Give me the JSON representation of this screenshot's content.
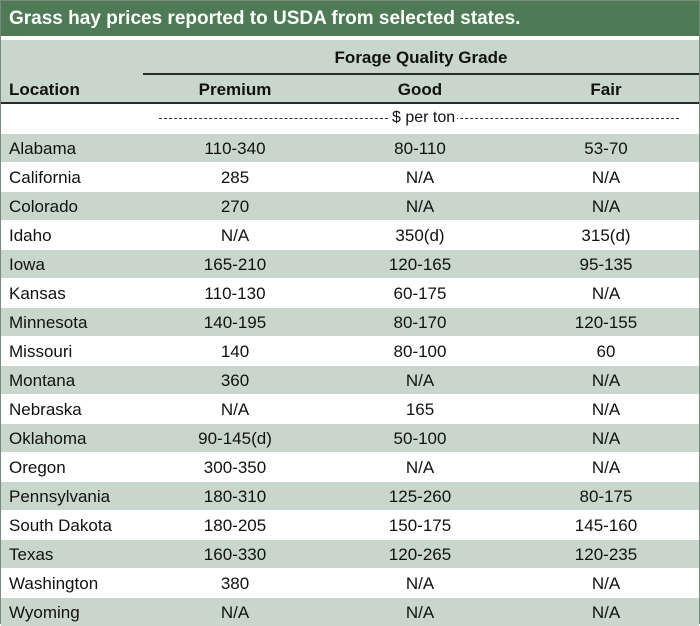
{
  "title": "Grass hay prices reported to USDA from selected states.",
  "header": {
    "group_label": "Forage Quality Grade",
    "location_label": "Location",
    "columns": [
      "Premium",
      "Good",
      "Fair"
    ]
  },
  "units_label": "$ per ton",
  "rows": [
    {
      "location": "Alabama",
      "premium": "110-340",
      "good": "80-110",
      "fair": "53-70"
    },
    {
      "location": "California",
      "premium": "285",
      "good": "N/A",
      "fair": "N/A"
    },
    {
      "location": "Colorado",
      "premium": "270",
      "good": "N/A",
      "fair": "N/A"
    },
    {
      "location": "Idaho",
      "premium": "N/A",
      "good": "350(d)",
      "fair": "315(d)"
    },
    {
      "location": "Iowa",
      "premium": "165-210",
      "good": "120-165",
      "fair": "95-135"
    },
    {
      "location": "Kansas",
      "premium": "110-130",
      "good": "60-175",
      "fair": "N/A"
    },
    {
      "location": "Minnesota",
      "premium": "140-195",
      "good": "80-170",
      "fair": "120-155"
    },
    {
      "location": "Missouri",
      "premium": "140",
      "good": "80-100",
      "fair": "60"
    },
    {
      "location": "Montana",
      "premium": "360",
      "good": "N/A",
      "fair": "N/A"
    },
    {
      "location": "Nebraska",
      "premium": "N/A",
      "good": "165",
      "fair": "N/A"
    },
    {
      "location": "Oklahoma",
      "premium": "90-145(d)",
      "good": "50-100",
      "fair": "N/A"
    },
    {
      "location": "Oregon",
      "premium": "300-350",
      "good": "N/A",
      "fair": "N/A"
    },
    {
      "location": "Pennsylvania",
      "premium": "180-310",
      "good": "125-260",
      "fair": "80-175"
    },
    {
      "location": "South Dakota",
      "premium": "180-205",
      "good": "150-175",
      "fair": "145-160"
    },
    {
      "location": "Texas",
      "premium": "160-330",
      "good": "120-265",
      "fair": "120-235"
    },
    {
      "location": "Washington",
      "premium": "380",
      "good": "N/A",
      "fair": "N/A"
    },
    {
      "location": "Wyoming",
      "premium": "N/A",
      "good": "N/A",
      "fair": "N/A"
    }
  ],
  "colors": {
    "title_bg": "#4e7a55",
    "band": "#c9d6cc"
  }
}
